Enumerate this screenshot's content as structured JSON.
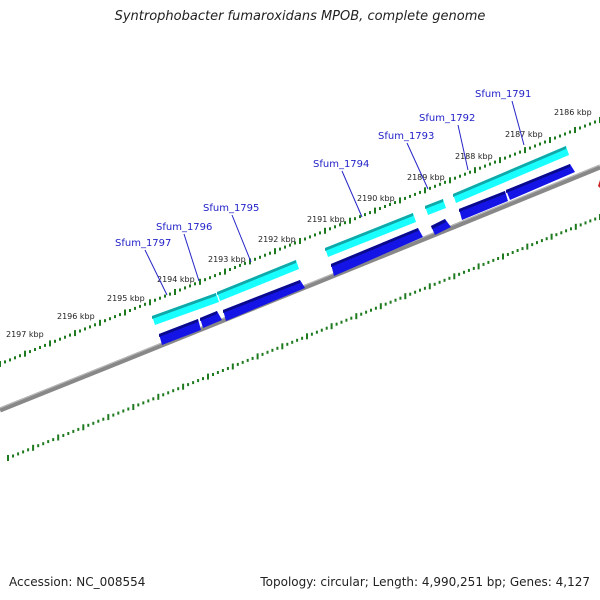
{
  "title": "Syntrophobacter fumaroxidans MPOB, complete genome",
  "footer": {
    "accession": "Accession: NC_008554",
    "topology": "Topology: circular; Length: 4,990,251 bp; Genes: 4,127"
  },
  "ticks": [
    {
      "label": "2186 kbp",
      "kbp": 2186
    },
    {
      "label": "2187 kbp",
      "kbp": 2187
    },
    {
      "label": "2188 kbp",
      "kbp": 2188
    },
    {
      "label": "2189 kbp",
      "kbp": 2189
    },
    {
      "label": "2190 kbp",
      "kbp": 2190
    },
    {
      "label": "2191 kbp",
      "kbp": 2191
    },
    {
      "label": "2192 kbp",
      "kbp": 2192
    },
    {
      "label": "2193 kbp",
      "kbp": 2193
    },
    {
      "label": "2194 kbp",
      "kbp": 2194
    },
    {
      "label": "2195 kbp",
      "kbp": 2195
    },
    {
      "label": "2196 kbp",
      "kbp": 2196
    },
    {
      "label": "2197 kbp",
      "kbp": 2197
    }
  ],
  "genes": [
    {
      "name": "Sfum_1791"
    },
    {
      "name": "Sfum_1792"
    },
    {
      "name": "Sfum_1793"
    },
    {
      "name": "Sfum_1794"
    },
    {
      "name": "Sfum_1795"
    },
    {
      "name": "Sfum_1796"
    },
    {
      "name": "Sfum_1797"
    }
  ],
  "colors": {
    "cds_cyan": "#19ffff",
    "cds_cyan_dark": "#10a8a8",
    "cds_blue": "#1414e6",
    "cds_blue_dark": "#0a0a8c",
    "backbone": "#888888",
    "ticks": "#1e7a1e",
    "label": "#1f1fc8"
  }
}
